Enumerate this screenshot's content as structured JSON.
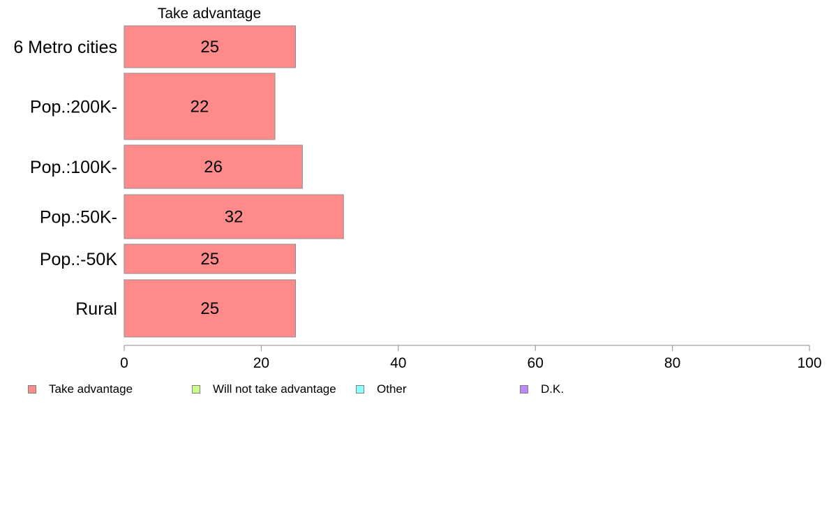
{
  "chart_data": {
    "type": "bar",
    "orientation": "horizontal",
    "title": "Take advantage",
    "categories": [
      "6 Metro cities",
      "Pop.:200K-",
      "Pop.:100K-",
      "Pop.:50K-",
      "Pop.:-50K",
      "Rural"
    ],
    "series": [
      {
        "name": "Take advantage",
        "values": [
          25,
          22,
          26,
          32,
          25,
          25
        ],
        "data_labels": [
          "25",
          "22",
          "26",
          "32",
          "25",
          "25"
        ],
        "color": "#ff8a8a"
      }
    ],
    "xlim": [
      0,
      100
    ],
    "xticks": [
      "0",
      "20",
      "40",
      "60",
      "80",
      "100"
    ],
    "legend_position": "bottom",
    "grid": false
  },
  "legend": [
    {
      "label": "Take advantage",
      "color": "#ff8a8a"
    },
    {
      "label": "Will not take advantage",
      "color": "#ccff88"
    },
    {
      "label": "Other",
      "color": "#88ffff"
    },
    {
      "label": "D.K.",
      "color": "#bb88ff"
    }
  ]
}
